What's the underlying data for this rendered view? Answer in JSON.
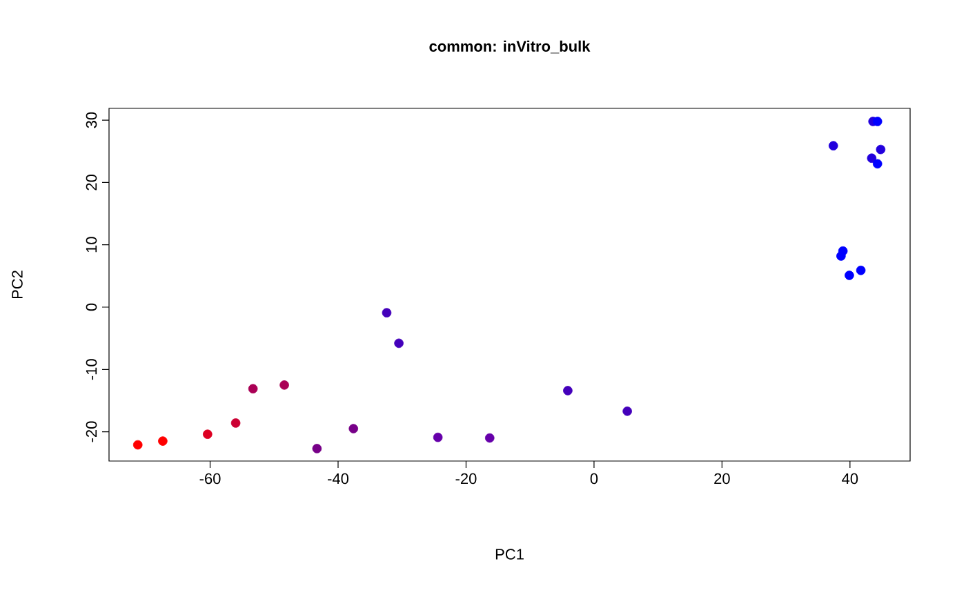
{
  "chart_data": {
    "type": "scatter",
    "title": "common: inVitro_bulk",
    "xlabel": "PC1",
    "ylabel": "PC2",
    "x": [
      -71.3,
      -67.4,
      -60.4,
      -56.0,
      -53.3,
      -48.4,
      -43.3,
      -37.6,
      -32.4,
      -30.5,
      -24.4,
      -16.3,
      -4.1,
      5.2,
      37.4,
      38.6,
      38.9,
      39.9,
      41.7,
      43.4,
      43.6,
      44.3,
      44.3,
      44.8
    ],
    "values": [
      -22.1,
      -21.5,
      -20.4,
      -18.6,
      -13.1,
      -12.5,
      -22.7,
      -19.5,
      -0.9,
      -5.8,
      -20.9,
      -21.0,
      -13.4,
      -16.7,
      25.9,
      8.2,
      9.0,
      5.1,
      5.9,
      23.9,
      29.8,
      29.8,
      23.0,
      25.3
    ],
    "colors": [
      "#ff0000",
      "#ff0000",
      "#dd0022",
      "#cc0033",
      "#aa0055",
      "#aa0055",
      "#770088",
      "#770088",
      "#4400bb",
      "#4400bb",
      "#6600aa",
      "#6600aa",
      "#4400bb",
      "#4400bb",
      "#2200dd",
      "#0000ff",
      "#0000ff",
      "#0000ff",
      "#0000ff",
      "#2200dd",
      "#2200dd",
      "#0000ff",
      "#0000ff",
      "#2200dd"
    ],
    "marker": "circle",
    "xlim": [
      -75.8,
      49.4
    ],
    "ylim": [
      -24.7,
      31.9
    ],
    "xticks": [
      -60,
      -40,
      -20,
      0,
      20,
      40
    ],
    "yticks": [
      -20,
      -10,
      0,
      10,
      20,
      30
    ]
  }
}
